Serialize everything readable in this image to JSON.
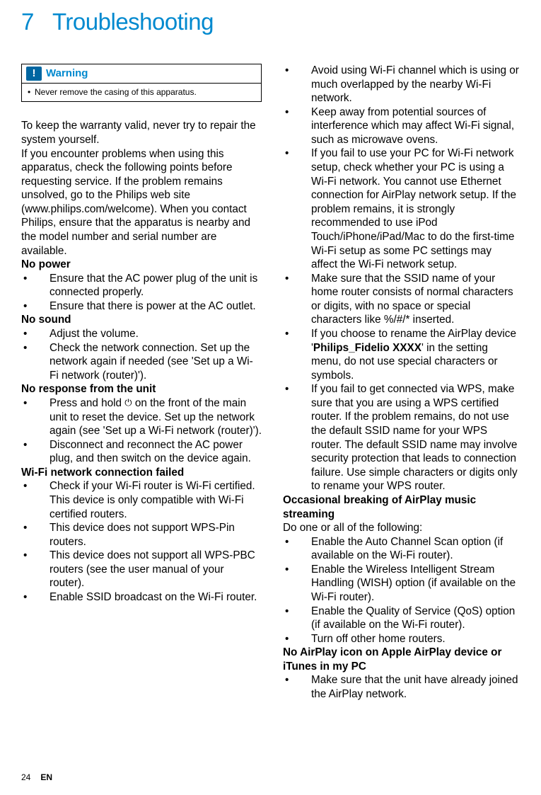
{
  "chapter": {
    "number": "7",
    "title": "Troubleshooting"
  },
  "warning": {
    "label": "Warning",
    "text": "Never remove the casing of this apparatus."
  },
  "left": {
    "intro1": "To keep the warranty valid, never try to repair the system yourself.",
    "intro2": "If you encounter problems when using this apparatus, check the following points before requesting service. If the problem remains unsolved, go to the Philips web site (www.philips.com/welcome). When you contact Philips, ensure that the apparatus is nearby and the model number and serial number are available.",
    "h_no_power": "No power",
    "no_power": [
      "Ensure that the AC power plug of the unit is connected properly.",
      "Ensure that there is power at the AC outlet."
    ],
    "h_no_sound": "No sound",
    "no_sound": [
      "Adjust the volume.",
      "Check the network connection. Set up the network again if needed (see 'Set up a Wi-Fi network (router)')."
    ],
    "h_no_response": "No response from the unit",
    "no_response_pre": "Press and hold ",
    "no_response_post": " on the front of the main unit to reset the device. Set up the network again (see 'Set up a Wi-Fi network (router)').",
    "no_response_2": "Disconnect and reconnect the AC power plug, and then switch on the device again.",
    "h_wifi_fail": "Wi-Fi network connection failed",
    "wifi_fail": [
      "Check if your Wi-Fi router is Wi-Fi certified. This device is only compatible with Wi-Fi certified routers.",
      "This device does not support WPS-Pin routers.",
      "This device does not support all WPS-PBC routers (see the user manual of your router).",
      "Enable SSID broadcast on the Wi-Fi router."
    ]
  },
  "right": {
    "top": [
      "Avoid using Wi-Fi channel which is using or much overlapped by the nearby Wi-Fi network.",
      "Keep away from potential sources of interference which may affect Wi-Fi signal, such as microwave ovens.",
      "If you fail to use your PC for Wi-Fi network setup, check whether your PC is using a Wi-Fi network. You cannot use Ethernet connection for AirPlay network setup. If the problem remains, it is strongly recommended to use iPod Touch/iPhone/iPad/Mac to do the first-time Wi-Fi setup as some PC settings may affect the Wi-Fi network setup.",
      "Make sure that the SSID name of your home router consists of normal characters or digits, with no space or special characters like %/#/* inserted."
    ],
    "rename_pre": "If you choose to rename the AirPlay device '",
    "rename_bold": "Philips_Fidelio XXXX",
    "rename_post": "' in the setting menu, do not use special characters or symbols.",
    "wps": "If you fail to get connected via WPS, make sure that you are using a WPS certified router. If the problem remains, do not use the default SSID name for your WPS router. The default SSID name may involve security protection that leads to connection failure. Use simple characters or digits only to rename your WPS router.",
    "h_breaking": "Occasional breaking of AirPlay music streaming",
    "breaking_intro": "Do one or all of the following:",
    "breaking": [
      "Enable the Auto Channel Scan option (if available on the Wi-Fi router).",
      "Enable the Wireless Intelligent Stream Handling (WISH) option (if available on the Wi-Fi router).",
      "Enable the Quality of Service (QoS) option (if available on the Wi-Fi router).",
      "Turn off other home routers."
    ],
    "h_no_icon": "No AirPlay icon on Apple AirPlay device or iTunes in my PC",
    "no_icon": [
      "Make sure that the unit have already joined the AirPlay network."
    ]
  },
  "footer": {
    "page": "24",
    "lang": "EN"
  }
}
